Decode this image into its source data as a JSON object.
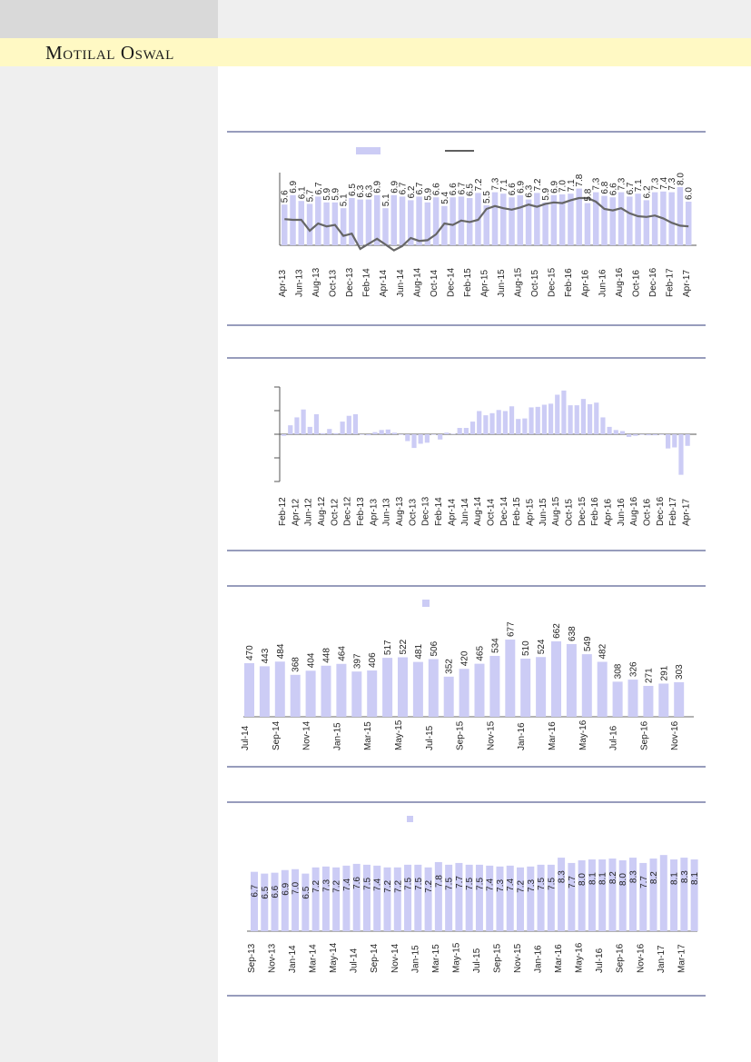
{
  "header": {
    "brand": "Motilal Oswal"
  },
  "chart_data": [
    {
      "type": "bar",
      "categories": [
        "Apr-13",
        "May-13",
        "Jun-13",
        "Jul-13",
        "Aug-13",
        "Sep-13",
        "Oct-13",
        "Nov-13",
        "Dec-13",
        "Jan-14",
        "Feb-14",
        "Mar-14",
        "Apr-14",
        "May-14",
        "Jun-14",
        "Jul-14",
        "Aug-14",
        "Sep-14",
        "Oct-14",
        "Nov-14",
        "Dec-14",
        "Jan-15",
        "Feb-15",
        "Mar-15",
        "Apr-15",
        "May-15",
        "Jun-15",
        "Jul-15",
        "Aug-15",
        "Sep-15",
        "Oct-15",
        "Nov-15",
        "Dec-15",
        "Jan-16",
        "Feb-16",
        "Mar-16",
        "Apr-16",
        "May-16",
        "Jun-16",
        "Jul-16",
        "Aug-16",
        "Sep-16",
        "Oct-16",
        "Nov-16",
        "Dec-16",
        "Jan-17",
        "Feb-17",
        "Mar-17",
        "Apr-17"
      ],
      "tick_labels": [
        "Apr-13",
        "Jun-13",
        "Aug-13",
        "Oct-13",
        "Dec-13",
        "Feb-14",
        "Apr-14",
        "Jun-14",
        "Aug-14",
        "Oct-14",
        "Dec-14",
        "Feb-15",
        "Apr-15",
        "Jun-15",
        "Aug-15",
        "Oct-15",
        "Dec-15",
        "Feb-16",
        "Apr-16",
        "Jun-16",
        "Aug-16",
        "Oct-16",
        "Dec-16",
        "Feb-17",
        "Apr-17"
      ],
      "values": [
        5.6,
        6.9,
        6.1,
        5.7,
        6.7,
        5.9,
        5.9,
        5.1,
        6.5,
        6.3,
        6.3,
        6.9,
        5.1,
        6.9,
        6.7,
        6.2,
        6.7,
        5.9,
        6.6,
        5.4,
        6.6,
        6.7,
        6.5,
        7.2,
        5.5,
        7.3,
        7.1,
        6.6,
        6.9,
        6.3,
        7.2,
        5.9,
        6.9,
        7.0,
        7.1,
        7.8,
        5.8,
        7.3,
        6.8,
        6.6,
        7.3,
        6.7,
        7.1,
        6.2,
        7.3,
        7.4,
        7.3,
        8.0,
        6.0
      ],
      "line": [
        3.6,
        3.5,
        3.5,
        2.0,
        3.0,
        2.6,
        2.8,
        1.3,
        1.6,
        -0.5,
        0.2,
        0.9,
        0.1,
        -0.7,
        -0.1,
        1.0,
        0.6,
        0.7,
        1.5,
        3.0,
        2.8,
        3.4,
        3.2,
        3.5,
        5.0,
        5.4,
        5.1,
        4.9,
        5.2,
        5.6,
        5.3,
        5.7,
        5.9,
        5.8,
        6.2,
        6.5,
        6.5,
        6.0,
        5.0,
        4.8,
        5.1,
        4.4,
        4.0,
        3.9,
        4.1,
        3.7,
        3.1,
        2.7,
        2.6
      ],
      "ylim": [
        -1.2,
        10
      ],
      "legend": "top"
    },
    {
      "type": "bar",
      "categories": [
        "Feb-12",
        "Mar-12",
        "Apr-12",
        "May-12",
        "Jun-12",
        "Jul-12",
        "Aug-12",
        "Sep-12",
        "Oct-12",
        "Nov-12",
        "Dec-12",
        "Jan-13",
        "Feb-13",
        "Mar-13",
        "Apr-13",
        "May-13",
        "Jun-13",
        "Jul-13",
        "Aug-13",
        "Sep-13",
        "Oct-13",
        "Nov-13",
        "Dec-13",
        "Jan-14",
        "Feb-14",
        "Mar-14",
        "Apr-14",
        "May-14",
        "Jun-14",
        "Jul-14",
        "Aug-14",
        "Sep-14",
        "Oct-14",
        "Nov-14",
        "Dec-14",
        "Jan-15",
        "Feb-15",
        "Mar-15",
        "Apr-15",
        "May-15",
        "Jun-15",
        "Jul-15",
        "Aug-15",
        "Sep-15",
        "Oct-15",
        "Nov-15",
        "Dec-15",
        "Jan-16",
        "Feb-16",
        "Mar-16",
        "Apr-16",
        "May-16",
        "Jun-16",
        "Jul-16",
        "Aug-16",
        "Sep-16",
        "Oct-16",
        "Nov-16",
        "Dec-16",
        "Jan-17",
        "Feb-17",
        "Mar-17",
        "Apr-17"
      ],
      "tick_labels": [
        "Feb-12",
        "Apr-12",
        "Jun-12",
        "Aug-12",
        "Oct-12",
        "Dec-12",
        "Feb-13",
        "Apr-13",
        "Jun-13",
        "Aug-13",
        "Oct-13",
        "Dec-13",
        "Feb-14",
        "Apr-14",
        "Jun-14",
        "Aug-14",
        "Oct-14",
        "Dec-14",
        "Feb-15",
        "Apr-15",
        "Jun-15",
        "Aug-15",
        "Oct-15",
        "Dec-15",
        "Feb-16",
        "Apr-16",
        "Jun-16",
        "Aug-16",
        "Oct-16",
        "Dec-16",
        "Feb-17",
        "Apr-17"
      ],
      "values": [
        -0.3,
        1.7,
        3.2,
        4.7,
        1.4,
        3.8,
        0.2,
        1.0,
        0.2,
        2.4,
        3.5,
        3.8,
        0.0,
        -0.2,
        0.4,
        0.8,
        0.9,
        0.3,
        0.0,
        -1.3,
        -2.6,
        -1.8,
        -1.6,
        0.0,
        -1.0,
        0.3,
        0.1,
        1.2,
        1.2,
        2.4,
        4.4,
        3.6,
        4.0,
        4.6,
        4.4,
        5.3,
        2.9,
        3.0,
        5.1,
        5.2,
        5.6,
        5.8,
        7.5,
        8.3,
        5.5,
        5.5,
        6.7,
        5.7,
        6.0,
        3.2,
        1.4,
        0.8,
        0.6,
        -0.5,
        -0.3,
        0.0,
        -0.2,
        -0.2,
        0.0,
        -2.7,
        -2.5,
        -7.7,
        -2.2
      ],
      "ylim": [
        -9,
        9
      ]
    },
    {
      "type": "bar",
      "categories": [
        "Jul-14",
        "Aug-14",
        "Sep-14",
        "Oct-14",
        "Nov-14",
        "Dec-14",
        "Jan-15",
        "Feb-15",
        "Mar-15",
        "Apr-15",
        "May-15",
        "Jun-15",
        "Jul-15",
        "Aug-15",
        "Sep-15",
        "Oct-15",
        "Nov-15",
        "Dec-15",
        "Jan-16",
        "Feb-16",
        "Mar-16",
        "Apr-16",
        "May-16",
        "Jun-16",
        "Jul-16",
        "Aug-16",
        "Sep-16",
        "Oct-16",
        "Nov-16"
      ],
      "tick_labels": [
        "Jul-14",
        "Sep-14",
        "Nov-14",
        "Jan-15",
        "Mar-15",
        "May-15",
        "Jul-15",
        "Sep-15",
        "Nov-15",
        "Jan-16",
        "Mar-16",
        "May-16",
        "Jul-16",
        "Sep-16",
        "Nov-16"
      ],
      "values": [
        470,
        443,
        484,
        368,
        404,
        448,
        464,
        397,
        406,
        517,
        522,
        481,
        506,
        352,
        420,
        465,
        534,
        677,
        510,
        524,
        662,
        638,
        549,
        482,
        308,
        326,
        271,
        291,
        303
      ],
      "ylim": [
        0,
        700
      ],
      "legend": "top"
    },
    {
      "type": "bar",
      "categories": [
        "Sep-13",
        "Oct-13",
        "Nov-13",
        "Dec-13",
        "Jan-14",
        "Feb-14",
        "Mar-14",
        "Apr-14",
        "May-14",
        "Jun-14",
        "Jul-14",
        "Aug-14",
        "Sep-14",
        "Oct-14",
        "Nov-14",
        "Dec-14",
        "Jan-15",
        "Feb-15",
        "Mar-15",
        "Apr-15",
        "May-15",
        "Jun-15",
        "Jul-15",
        "Aug-15",
        "Sep-15",
        "Oct-15",
        "Nov-15",
        "Dec-15",
        "Jan-16",
        "Feb-16",
        "Mar-16",
        "Apr-16",
        "May-16",
        "Jun-16",
        "Jul-16",
        "Aug-16",
        "Sep-16",
        "Oct-16",
        "Nov-16",
        "Dec-16",
        "Jan-17",
        "Feb-17",
        "Mar-17",
        "Apr-17"
      ],
      "tick_labels": [
        "Sep-13",
        "Nov-13",
        "Jan-14",
        "Mar-14",
        "May-14",
        "Jul-14",
        "Sep-14",
        "Nov-14",
        "Jan-15",
        "Mar-15",
        "May-15",
        "Jul-15",
        "Sep-15",
        "Nov-15",
        "Jan-16",
        "Mar-16",
        "May-16",
        "Jul-16",
        "Sep-16",
        "Nov-16",
        "Jan-17",
        "Mar-17"
      ],
      "values": [
        6.7,
        6.5,
        6.6,
        6.9,
        7.0,
        6.5,
        7.2,
        7.3,
        7.2,
        7.4,
        7.6,
        7.5,
        7.4,
        7.2,
        7.2,
        7.5,
        7.5,
        7.2,
        7.8,
        7.5,
        7.7,
        7.5,
        7.5,
        7.4,
        7.3,
        7.4,
        7.2,
        7.3,
        7.5,
        7.5,
        8.3,
        7.7,
        8.0,
        8.1,
        8.1,
        8.2,
        8.0,
        8.3,
        7.7,
        8.2,
        8.6,
        8.1,
        8.3,
        8.1
      ],
      "label_indices": [
        0,
        1,
        2,
        3,
        4,
        5,
        6,
        7,
        8,
        9,
        10,
        11,
        12,
        13,
        14,
        15,
        16,
        17,
        18,
        19,
        20,
        21,
        22,
        23,
        24,
        25,
        26,
        27,
        28,
        29,
        30,
        31,
        32,
        33,
        34,
        35,
        36,
        37,
        38,
        39,
        41,
        42,
        43
      ],
      "ylim": [
        0,
        10
      ],
      "legend": "top"
    }
  ]
}
